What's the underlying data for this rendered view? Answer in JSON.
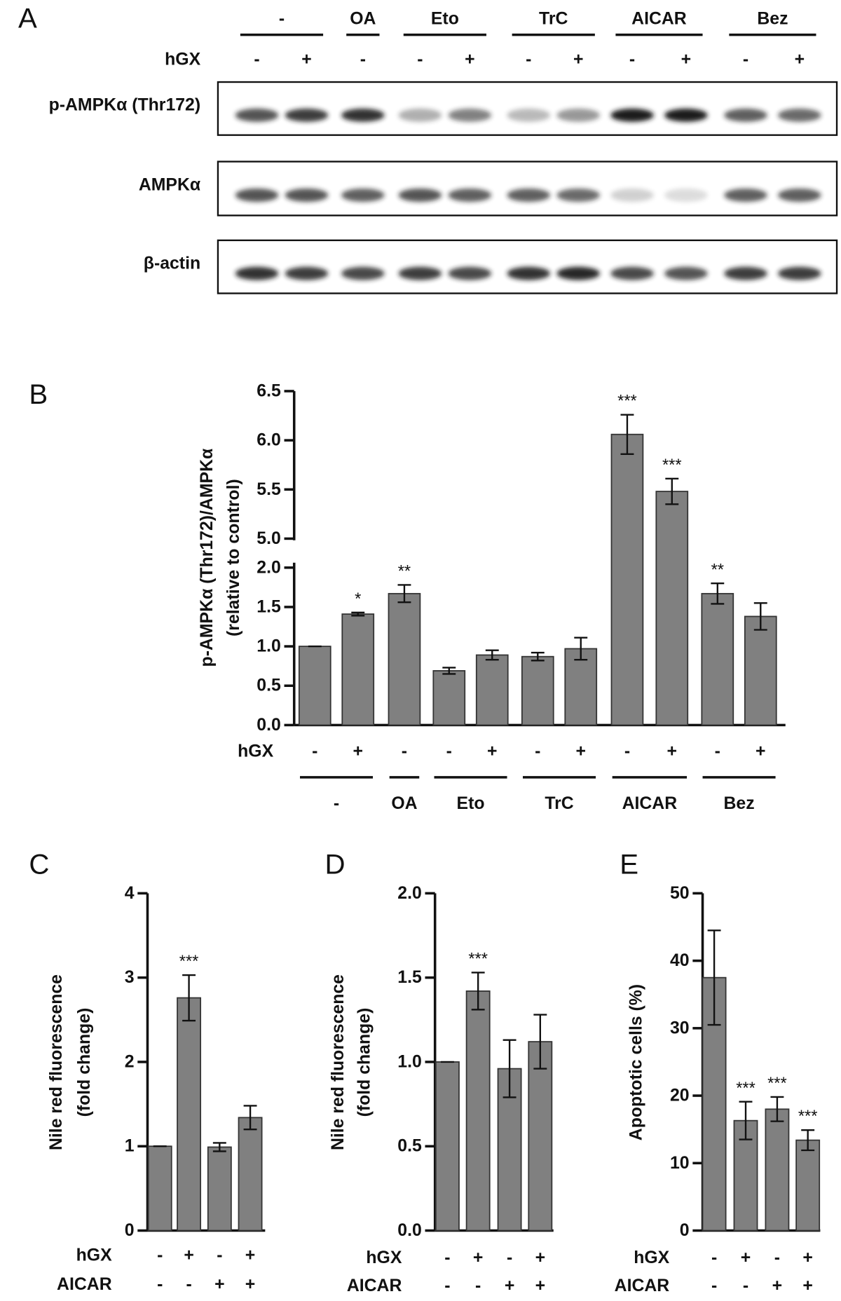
{
  "blot": {
    "panel": "A",
    "hgx_label": "hGX",
    "treatments": [
      "-",
      "-",
      "OA",
      "Eto",
      "Eto",
      "TrC",
      "TrC",
      "AICAR",
      "AICAR",
      "Bez",
      "Bez"
    ],
    "hgx": [
      "-",
      "+",
      "-",
      "-",
      "+",
      "-",
      "+",
      "-",
      "+",
      "-",
      "+"
    ],
    "rows": [
      {
        "label": "p-AMPKα (Thr172)"
      },
      {
        "label": "AMPKα"
      },
      {
        "label": "β-actin"
      }
    ]
  },
  "chart_data": [
    {
      "type": "bar",
      "panel": "B",
      "ylabel": [
        "p-AMPKα (Thr172)/AMPKα",
        "(relative to control)"
      ],
      "values": [
        1.0,
        1.41,
        1.67,
        0.69,
        0.89,
        0.87,
        0.97,
        6.06,
        5.48,
        1.67,
        1.38
      ],
      "errors": [
        0,
        0.02,
        0.11,
        0.04,
        0.06,
        0.05,
        0.14,
        0.2,
        0.13,
        0.13,
        0.17
      ],
      "significance": [
        null,
        "*",
        "**",
        null,
        null,
        null,
        null,
        "***",
        "***",
        "**",
        null
      ],
      "conditions": [
        {
          "name": "hGX",
          "values": [
            "-",
            "+",
            "-",
            "-",
            "+",
            "-",
            "+",
            "-",
            "+",
            "-",
            "+"
          ]
        }
      ],
      "treatments": [
        "-",
        "-",
        "OA",
        "Eto",
        "Eto",
        "TrC",
        "TrC",
        "AICAR",
        "AICAR",
        "Bez",
        "Bez"
      ],
      "color": "#808080",
      "ylim": [
        0,
        6.5
      ],
      "ybreak": [
        2,
        5
      ],
      "yticks": [
        {
          "value": 0,
          "label": "0.0"
        },
        0.5,
        {
          "value": 1,
          "label": "1.0"
        },
        1.5,
        {
          "value": 2,
          "label": "2.0"
        },
        {
          "value": 5,
          "label": "5.0"
        },
        5.5,
        {
          "value": 6,
          "label": "6.0"
        },
        6.5
      ]
    },
    {
      "type": "bar",
      "panel": "C",
      "ylabel": [
        "Nile red fluorescence",
        "(fold change)"
      ],
      "values": [
        1.0,
        2.76,
        0.99,
        1.34
      ],
      "errors": [
        0,
        0.27,
        0.05,
        0.14
      ],
      "significance": [
        null,
        "***",
        null,
        null
      ],
      "conditions": [
        {
          "name": "hGX",
          "values": [
            "-",
            "+",
            "-",
            "+"
          ]
        },
        {
          "name": "AICAR",
          "values": [
            "-",
            "-",
            "+",
            "+"
          ]
        }
      ],
      "color": "#808080",
      "ylim": [
        0,
        4
      ],
      "yticks": [
        0,
        1,
        2,
        3,
        4
      ]
    },
    {
      "type": "bar",
      "panel": "D",
      "ylabel": [
        "Nile red fluorescence",
        "(fold change)"
      ],
      "values": [
        1.0,
        1.42,
        0.96,
        1.12
      ],
      "errors": [
        0,
        0.11,
        0.17,
        0.16
      ],
      "significance": [
        null,
        "***",
        null,
        null
      ],
      "conditions": [
        {
          "name": "hGX",
          "values": [
            "-",
            "+",
            "-",
            "+"
          ]
        },
        {
          "name": "AICAR",
          "values": [
            "-",
            "-",
            "+",
            "+"
          ]
        }
      ],
      "color": "#808080",
      "ylim": [
        0,
        2
      ],
      "yticks": [
        {
          "value": 0,
          "label": "0.0"
        },
        0.5,
        {
          "value": 1,
          "label": "1.0"
        },
        1.5,
        {
          "value": 2,
          "label": "2.0"
        }
      ]
    },
    {
      "type": "bar",
      "panel": "E",
      "ylabel": [
        "Apoptotic cells (%)"
      ],
      "values": [
        37.5,
        16.3,
        18.0,
        13.4
      ],
      "errors": [
        7.0,
        2.8,
        1.8,
        1.5
      ],
      "significance": [
        null,
        "***",
        "***",
        "***"
      ],
      "conditions": [
        {
          "name": "hGX",
          "values": [
            "-",
            "+",
            "-",
            "+"
          ]
        },
        {
          "name": "AICAR",
          "values": [
            "-",
            "-",
            "+",
            "+"
          ]
        }
      ],
      "color": "#808080",
      "ylim": [
        0,
        50
      ],
      "yticks": [
        0,
        10,
        20,
        30,
        40,
        50
      ]
    }
  ]
}
